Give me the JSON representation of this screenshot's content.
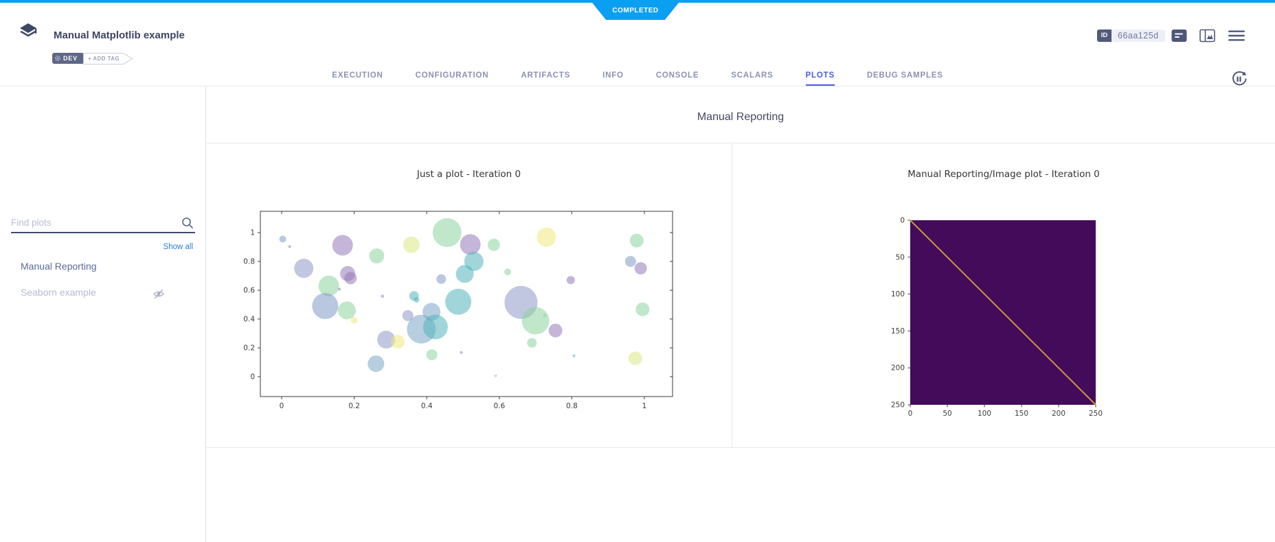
{
  "status_ribbon": {
    "label": "COMPLETED"
  },
  "header": {
    "title": "Manual Matplotlib example",
    "tags": {
      "dev": "DEV",
      "add_tag": "+ ADD TAG"
    },
    "id_badge": {
      "label": "ID",
      "value": "66aa125d"
    }
  },
  "tabs": {
    "items": [
      {
        "label": "EXECUTION",
        "active": false
      },
      {
        "label": "CONFIGURATION",
        "active": false
      },
      {
        "label": "ARTIFACTS",
        "active": false
      },
      {
        "label": "INFO",
        "active": false
      },
      {
        "label": "CONSOLE",
        "active": false
      },
      {
        "label": "SCALARS",
        "active": false
      },
      {
        "label": "PLOTS",
        "active": true
      },
      {
        "label": "DEBUG SAMPLES",
        "active": false
      }
    ]
  },
  "sidebar": {
    "search_placeholder": "Find plots",
    "show_all_label": "Show all",
    "items": [
      {
        "label": "Manual Reporting",
        "hidden": false
      },
      {
        "label": "Seaborn example",
        "hidden": true
      }
    ]
  },
  "main": {
    "section_title": "Manual Reporting"
  },
  "chart_data": [
    {
      "type": "scatter",
      "title": "Just a plot - Iteration 0",
      "xlabel": "",
      "ylabel": "",
      "xlim": [
        -0.06,
        1.08
      ],
      "ylim": [
        -0.14,
        1.16
      ],
      "xticks": [
        0,
        0.2,
        0.4,
        0.6,
        0.8,
        1
      ],
      "yticks": [
        0,
        0.2,
        0.4,
        0.6,
        0.8,
        1
      ],
      "grid": false,
      "legend": null,
      "marker_opacity": 0.55,
      "palette": {
        "p": "#9678b8",
        "b": "#7f99c8",
        "l": "#8e97c9",
        "t": "#52b5bc",
        "s": "#7aa6c4",
        "g": "#8cd49e",
        "y": "#f0e87e",
        "yg": "#dce785"
      },
      "points": [
        [
          0.003,
          0.955,
          5,
          "b"
        ],
        [
          0.022,
          0.903,
          2,
          "p"
        ],
        [
          0.168,
          0.912,
          15,
          "p"
        ],
        [
          0.061,
          0.752,
          14,
          "l"
        ],
        [
          0.182,
          0.715,
          11,
          "p"
        ],
        [
          0.19,
          0.684,
          9,
          "p"
        ],
        [
          0.13,
          0.63,
          15,
          "g"
        ],
        [
          0.159,
          0.607,
          2,
          "p"
        ],
        [
          0.262,
          0.838,
          11,
          "g"
        ],
        [
          0.358,
          0.915,
          12,
          "yg"
        ],
        [
          0.456,
          1.0,
          21,
          "g"
        ],
        [
          0.52,
          0.917,
          15,
          "p"
        ],
        [
          0.585,
          0.915,
          9,
          "g"
        ],
        [
          0.73,
          0.968,
          14,
          "y"
        ],
        [
          0.979,
          0.945,
          10,
          "g"
        ],
        [
          0.12,
          0.49,
          19,
          "b"
        ],
        [
          0.18,
          0.46,
          13,
          "g"
        ],
        [
          0.2,
          0.392,
          5,
          "y"
        ],
        [
          0.278,
          0.558,
          2.5,
          "l"
        ],
        [
          0.365,
          0.56,
          7,
          "t"
        ],
        [
          0.372,
          0.533,
          4,
          "t"
        ],
        [
          0.44,
          0.677,
          7,
          "b"
        ],
        [
          0.505,
          0.713,
          13,
          "t"
        ],
        [
          0.53,
          0.8,
          14,
          "t"
        ],
        [
          0.623,
          0.727,
          5,
          "g"
        ],
        [
          0.487,
          0.52,
          19,
          "t"
        ],
        [
          0.348,
          0.424,
          8,
          "l"
        ],
        [
          0.413,
          0.45,
          13,
          "s"
        ],
        [
          0.385,
          0.33,
          21,
          "s"
        ],
        [
          0.424,
          0.345,
          18,
          "t"
        ],
        [
          0.288,
          0.257,
          13,
          "l"
        ],
        [
          0.32,
          0.243,
          10,
          "y"
        ],
        [
          0.26,
          0.09,
          12,
          "s"
        ],
        [
          0.414,
          0.152,
          8,
          "g"
        ],
        [
          0.495,
          0.168,
          2,
          "p"
        ],
        [
          0.59,
          0.005,
          2,
          "g"
        ],
        [
          0.66,
          0.515,
          24,
          "l"
        ],
        [
          0.7,
          0.388,
          20,
          "g"
        ],
        [
          0.725,
          0.425,
          2.5,
          "g"
        ],
        [
          0.755,
          0.32,
          10,
          "p"
        ],
        [
          0.69,
          0.235,
          7,
          "g"
        ],
        [
          0.797,
          0.67,
          6,
          "p"
        ],
        [
          0.962,
          0.8,
          8,
          "b"
        ],
        [
          0.99,
          0.752,
          9,
          "p"
        ],
        [
          0.995,
          0.467,
          10,
          "g"
        ],
        [
          0.975,
          0.128,
          10,
          "yg"
        ],
        [
          0.806,
          0.145,
          2,
          "t"
        ]
      ]
    },
    {
      "type": "heatmap",
      "title": "Manual Reporting/Image plot - Iteration 0",
      "xticks": [
        0,
        50,
        100,
        150,
        200,
        250
      ],
      "yticks": [
        0,
        50,
        100,
        150,
        200,
        250
      ],
      "xlim": [
        0,
        250
      ],
      "ylim": [
        250,
        0
      ],
      "background_color": "#430b5a",
      "diagonal_color": "#cc9742",
      "content": "uniform dark-purple image with a bright diagonal line from (0,0) to (250,250)"
    }
  ]
}
